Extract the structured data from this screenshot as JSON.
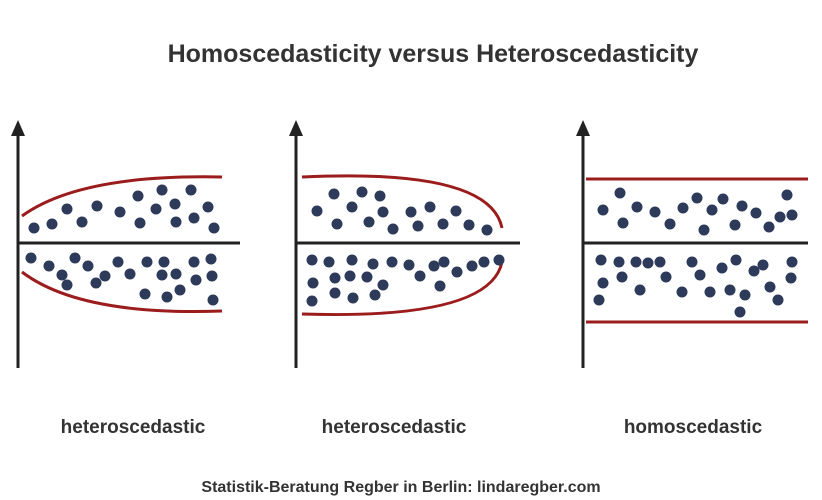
{
  "title": "Homoscedasticity versus Heteroscedasticity",
  "panels": [
    {
      "label": "heteroscedastic"
    },
    {
      "label": "heteroscedastic"
    },
    {
      "label": "homoscedastic"
    }
  ],
  "footer": "Statistik-Beratung Regber in Berlin: lindaregber.com",
  "colors": {
    "envelope": "#9b1c1c",
    "dot": "#2e3a59",
    "axis": "#222222"
  }
}
